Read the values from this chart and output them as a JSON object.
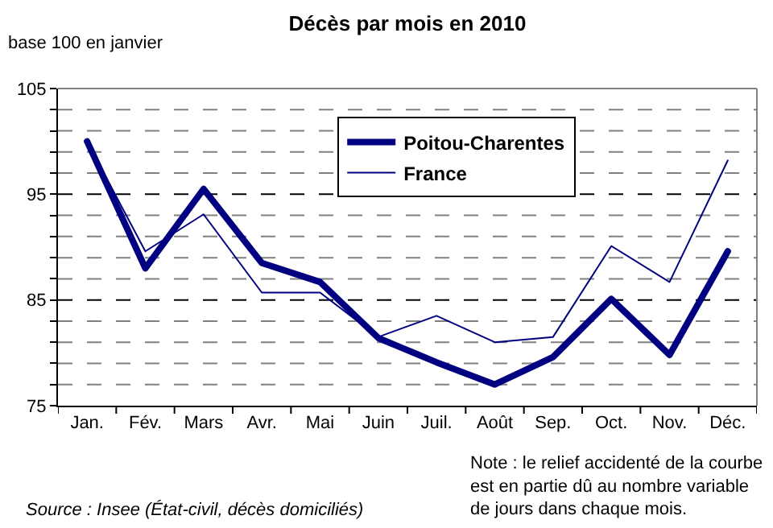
{
  "chart_data": {
    "type": "line",
    "title": "Décès par mois en 2010",
    "ylabel": "base 100 en janvier",
    "categories": [
      "Jan.",
      "Fév.",
      "Mars",
      "Avr.",
      "Mai",
      "Juin",
      "Juil.",
      "Août",
      "Sep.",
      "Oct.",
      "Nov.",
      "Déc."
    ],
    "series": [
      {
        "name": "Poitou-Charentes",
        "color": "#000080",
        "values": [
          100,
          88.0,
          95.5,
          88.5,
          86.7,
          81.4,
          79.1,
          77.0,
          79.6,
          85.1,
          79.8,
          89.6
        ]
      },
      {
        "name": "France",
        "color": "#000080",
        "values": [
          100,
          89.6,
          93.1,
          85.7,
          85.7,
          81.5,
          83.5,
          81.0,
          81.5,
          90.1,
          86.7,
          98.2
        ]
      }
    ],
    "ylim": [
      75,
      105
    ],
    "yticks": [
      75,
      {
        "value": 77,
        "label": null
      },
      {
        "value": 79,
        "label": null
      },
      {
        "value": 81,
        "label": null
      },
      {
        "value": 83,
        "label": null
      },
      85,
      {
        "value": 87,
        "label": null
      },
      {
        "value": 89,
        "label": null
      },
      {
        "value": 91,
        "label": null
      },
      {
        "value": 93,
        "label": null
      },
      95,
      {
        "value": 97,
        "label": null
      },
      {
        "value": 99,
        "label": null
      },
      {
        "value": 101,
        "label": null
      },
      {
        "value": 103,
        "label": null
      },
      105
    ],
    "grid": "y",
    "legend": "top right",
    "marker": "none",
    "line_style": "solid",
    "annotations": [
      "Note : le relief accidenté de la courbe\nest en partie dû au nombre variable\nde jours dans chaque mois.",
      "Source : Insee (État-civil, décès domiciliés)"
    ]
  }
}
